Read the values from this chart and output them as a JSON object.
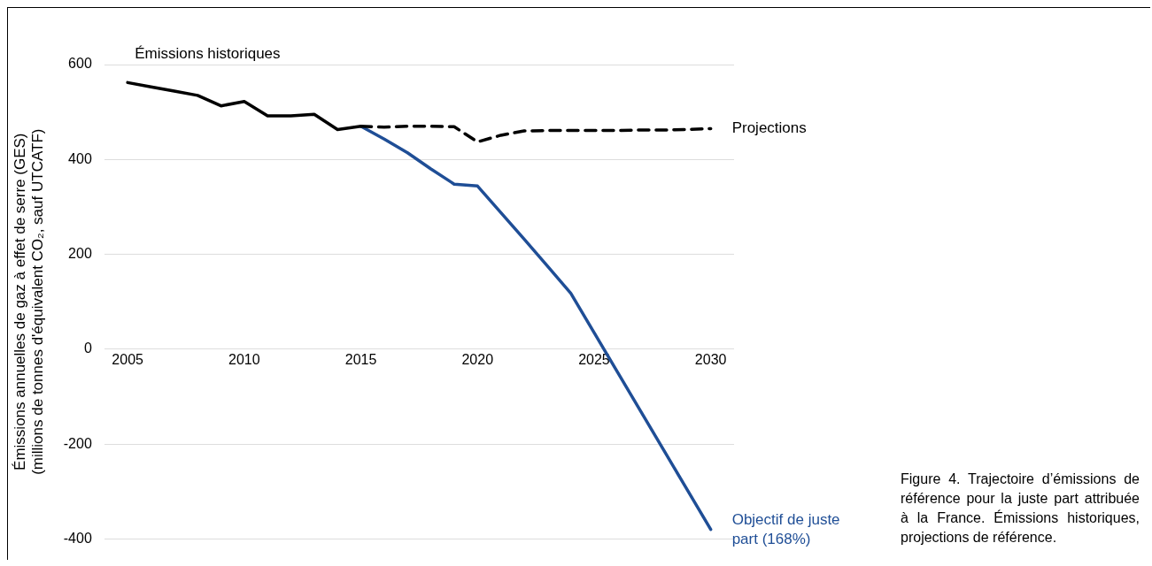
{
  "chart_data": {
    "type": "line",
    "ylabel": "Émissions annuelles de gaz à effet de serre (GES)\n(millions de tonnes d'équivalent CO₂, sauf UTCATF)",
    "xlim": [
      2004,
      2031
    ],
    "xticks": [
      2005,
      2010,
      2015,
      2020,
      2025,
      2030
    ],
    "ylim": [
      -400,
      600
    ],
    "yticks": [
      -400,
      -200,
      0,
      200,
      400,
      600
    ],
    "grid": "y",
    "legend": "right",
    "series": [
      {
        "name": "Émissions historiques",
        "color": "#000000",
        "line_style": "solid",
        "x": [
          2005,
          2006,
          2007,
          2008,
          2009,
          2010,
          2011,
          2012,
          2013,
          2014,
          2015
        ],
        "values": [
          562,
          553,
          544,
          535,
          513,
          522,
          492,
          492,
          495,
          463,
          470
        ]
      },
      {
        "name": "Projections",
        "color": "#000000",
        "line_style": "dashed",
        "x": [
          2015,
          2016,
          2017,
          2018,
          2019,
          2020,
          2021,
          2022,
          2023,
          2024,
          2025,
          2026,
          2027,
          2028,
          2029,
          2030
        ],
        "values": [
          470,
          468,
          470,
          470,
          469,
          437,
          451,
          460,
          461,
          461,
          461,
          461,
          462,
          462,
          463,
          465
        ]
      },
      {
        "name": "Objectif de juste part (168%)",
        "color": "#1f4e96",
        "line_style": "solid",
        "x": [
          2015,
          2016,
          2017,
          2018,
          2019,
          2020,
          2021,
          2022,
          2023,
          2024,
          2025,
          2026,
          2027,
          2028,
          2029,
          2030
        ],
        "values": [
          470,
          443,
          414,
          380,
          348,
          344,
          288,
          232,
          175,
          118,
          35,
          -48,
          -131,
          -214,
          -297,
          -380
        ]
      }
    ],
    "annotations": [
      "Figure 4. Trajectoire d’émissions de référence pour la juste part attribuée à la France. Émissions historiques, projections de référence."
    ]
  }
}
